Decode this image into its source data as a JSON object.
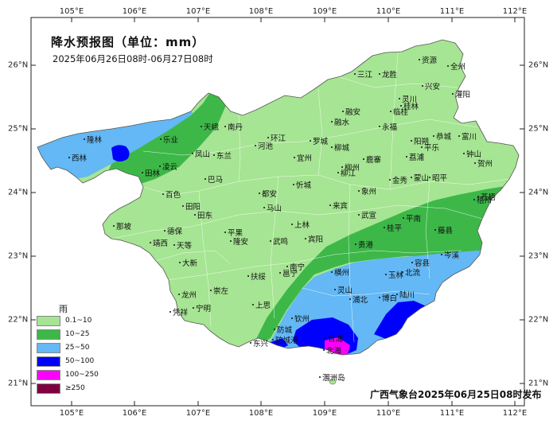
{
  "title": "降水预报图（单位：mm）",
  "period": "2025年06月26日08时-06月27日08时",
  "issuer": "广西气象台2025年06月25日08时发布",
  "legend": {
    "title": "雨",
    "items": [
      {
        "label": "0.1~10",
        "color": "#a6e593"
      },
      {
        "label": "10~25",
        "color": "#3db848"
      },
      {
        "label": "25~50",
        "color": "#63b8f5"
      },
      {
        "label": "50~100",
        "color": "#0000fe"
      },
      {
        "label": "100~250",
        "color": "#fa00fa"
      },
      {
        "label": "≥250",
        "color": "#7f0040"
      }
    ]
  },
  "axes": {
    "longitudes": [
      "105°E",
      "106°E",
      "107°E",
      "108°E",
      "109°E",
      "110°E",
      "111°E",
      "112°E"
    ],
    "latitudes": [
      "26°N",
      "25°N",
      "24°N",
      "23°N",
      "22°N",
      "21°N"
    ]
  },
  "cities": [
    {
      "name": "三江"
    },
    {
      "name": "龙胜"
    },
    {
      "name": "资源"
    },
    {
      "name": "全州"
    },
    {
      "name": "兴安"
    },
    {
      "name": "灌阳"
    },
    {
      "name": "灵川"
    },
    {
      "name": "桂林"
    },
    {
      "name": "融安"
    },
    {
      "name": "临桂"
    },
    {
      "name": "南丹"
    },
    {
      "name": "天峨"
    },
    {
      "name": "融水"
    },
    {
      "name": "永福"
    },
    {
      "name": "恭城"
    },
    {
      "name": "富川"
    },
    {
      "name": "环江"
    },
    {
      "name": "罗城"
    },
    {
      "name": "阳朔"
    },
    {
      "name": "平乐"
    },
    {
      "name": "钟山"
    },
    {
      "name": "隆林"
    },
    {
      "name": "乐业"
    },
    {
      "name": "河池"
    },
    {
      "name": "荔浦"
    },
    {
      "name": "贺州"
    },
    {
      "name": "西林"
    },
    {
      "name": "凤山"
    },
    {
      "name": "东兰"
    },
    {
      "name": "宜州"
    },
    {
      "name": "柳城"
    },
    {
      "name": "鹿寨"
    },
    {
      "name": "田林"
    },
    {
      "name": "凌云"
    },
    {
      "name": "柳州"
    },
    {
      "name": "柳江"
    },
    {
      "name": "金秀"
    },
    {
      "name": "蒙山"
    },
    {
      "name": "昭平"
    },
    {
      "name": "巴马"
    },
    {
      "name": "忻城"
    },
    {
      "name": "象州"
    },
    {
      "name": "百色"
    },
    {
      "name": "都安"
    },
    {
      "name": "梧州"
    },
    {
      "name": "苍梧"
    },
    {
      "name": "田阳"
    },
    {
      "name": "马山"
    },
    {
      "name": "来宾"
    },
    {
      "name": "武宣"
    },
    {
      "name": "田东"
    },
    {
      "name": "那坡"
    },
    {
      "name": "上林"
    },
    {
      "name": "平南"
    },
    {
      "name": "藤县"
    },
    {
      "name": "德保"
    },
    {
      "name": "平果"
    },
    {
      "name": "桂平"
    },
    {
      "name": "靖西"
    },
    {
      "name": "宾阳"
    },
    {
      "name": "隆安"
    },
    {
      "name": "武鸣"
    },
    {
      "name": "贵港"
    },
    {
      "name": "岑溪"
    },
    {
      "name": "天等"
    },
    {
      "name": "大新"
    },
    {
      "name": "南宁"
    },
    {
      "name": "容县"
    },
    {
      "name": "横州"
    },
    {
      "name": "邕宁"
    },
    {
      "name": "扶绥"
    },
    {
      "name": "玉林"
    },
    {
      "name": "北流"
    },
    {
      "name": "崇左"
    },
    {
      "name": "灵山"
    },
    {
      "name": "龙州"
    },
    {
      "name": "宁明"
    },
    {
      "name": "浦北"
    },
    {
      "name": "博白"
    },
    {
      "name": "陆川"
    },
    {
      "name": "凭祥"
    },
    {
      "name": "上思"
    },
    {
      "name": "钦州"
    },
    {
      "name": "防城"
    },
    {
      "name": "合浦"
    },
    {
      "name": "东兴"
    },
    {
      "name": "防城港"
    },
    {
      "name": "北海"
    },
    {
      "name": "涠洲岛"
    }
  ]
}
